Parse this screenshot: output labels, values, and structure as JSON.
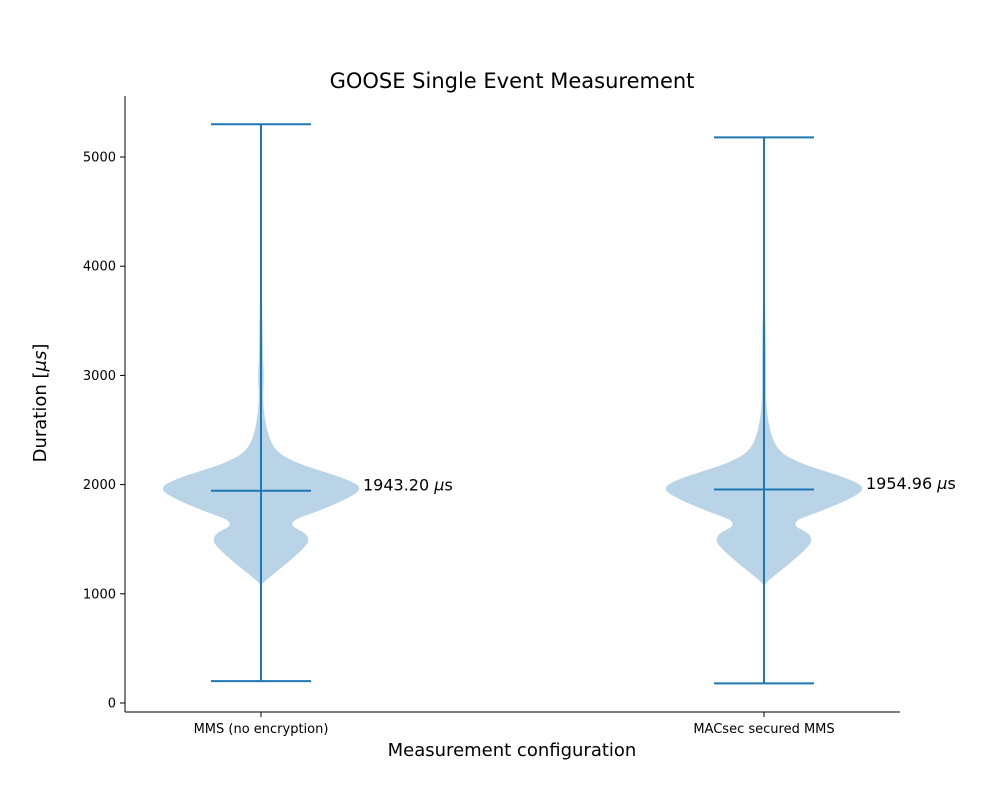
{
  "chart_data": {
    "type": "violin",
    "title": "GOOSE Single Event Measurement",
    "xlabel": "Measurement configuration",
    "ylabel_text": "Duration [",
    "ylabel_unit": "μs",
    "ylabel_close": "]",
    "ylim": [
      -80,
      5560
    ],
    "yticks": [
      0,
      1000,
      2000,
      3000,
      4000,
      5000
    ],
    "grid": false,
    "legend": "none",
    "categories": [
      "MMS (no encryption)",
      "MACsec secured MMS"
    ],
    "series": [
      {
        "category": "MMS (no encryption)",
        "min": 200,
        "max": 5300,
        "median": 1943.2,
        "median_label_value": "1943.20",
        "median_label_unit": "μs",
        "density_profile": [
          [
            1080,
            0
          ],
          [
            1150,
            8
          ],
          [
            1250,
            22
          ],
          [
            1350,
            35
          ],
          [
            1450,
            46
          ],
          [
            1500,
            48
          ],
          [
            1560,
            44
          ],
          [
            1620,
            30
          ],
          [
            1680,
            33
          ],
          [
            1740,
            52
          ],
          [
            1820,
            74
          ],
          [
            1900,
            92
          ],
          [
            1950,
            99
          ],
          [
            2000,
            97
          ],
          [
            2060,
            82
          ],
          [
            2120,
            62
          ],
          [
            2200,
            35
          ],
          [
            2300,
            15
          ],
          [
            2450,
            7
          ],
          [
            2650,
            3
          ],
          [
            2800,
            2
          ],
          [
            3000,
            3
          ],
          [
            3150,
            2
          ],
          [
            3500,
            1.5
          ],
          [
            4100,
            0
          ]
        ]
      },
      {
        "category": "MACsec secured MMS",
        "min": 180,
        "max": 5180,
        "median": 1954.96,
        "median_label_value": "1954.96",
        "median_label_unit": "μs",
        "density_profile": [
          [
            1080,
            0
          ],
          [
            1150,
            8
          ],
          [
            1250,
            22
          ],
          [
            1350,
            35
          ],
          [
            1450,
            46
          ],
          [
            1500,
            48
          ],
          [
            1560,
            44
          ],
          [
            1620,
            30
          ],
          [
            1680,
            33
          ],
          [
            1740,
            52
          ],
          [
            1820,
            74
          ],
          [
            1900,
            92
          ],
          [
            1950,
            99
          ],
          [
            2000,
            97
          ],
          [
            2060,
            82
          ],
          [
            2120,
            62
          ],
          [
            2200,
            35
          ],
          [
            2300,
            15
          ],
          [
            2450,
            7
          ],
          [
            2650,
            3
          ],
          [
            2800,
            2
          ],
          [
            3000,
            2
          ],
          [
            3200,
            2
          ],
          [
            3500,
            1.5
          ],
          [
            3900,
            0
          ]
        ]
      }
    ],
    "colors": {
      "fill": "#b9d3e7",
      "line": "#1f77b4",
      "axis": "#000000"
    }
  }
}
